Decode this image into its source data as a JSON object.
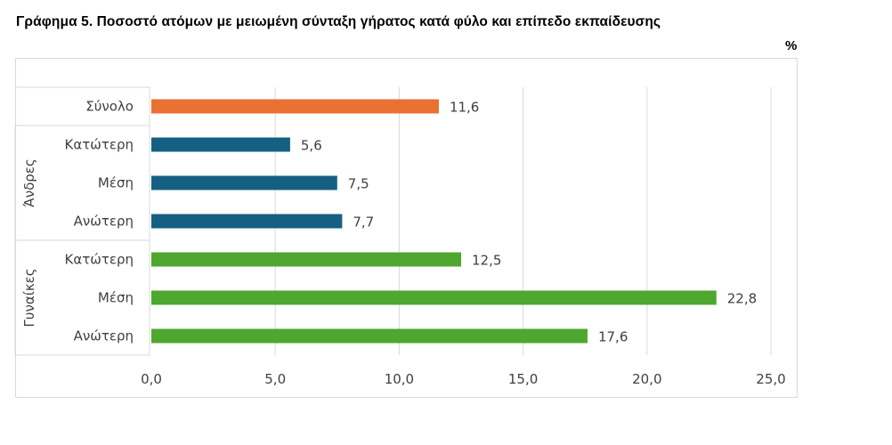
{
  "title": "Γράφημα 5. Ποσοστό ατόμων με μειωμένη σύνταξη γήρατος κατά φύλο και επίπεδο εκπαίδευσης",
  "unit": "%",
  "chart_data": {
    "type": "bar",
    "orientation": "horizontal",
    "title": "Γράφημα 5. Ποσοστό ατόμων με μειωμένη σύνταξη γήρατος κατά φύλο και επίπεδο εκπαίδευσης",
    "ylabel": "%",
    "groups": [
      {
        "name": "",
        "categories": [
          "Σύνολο"
        ]
      },
      {
        "name": "Άνδρες",
        "categories": [
          "Κατώτερη",
          "Μέση",
          "Ανώτερη"
        ]
      },
      {
        "name": "Γυναίκες",
        "categories": [
          "Κατώτερη",
          "Μέση",
          "Ανώτερη"
        ]
      }
    ],
    "categories": [
      "Σύνολο",
      "Κατώτερη",
      "Μέση",
      "Ανώτερη",
      "Κατώτερη",
      "Μέση",
      "Ανώτερη"
    ],
    "values": [
      11.6,
      5.6,
      7.5,
      7.7,
      12.5,
      22.8,
      17.6
    ],
    "value_labels": [
      "11,6",
      "5,6",
      "7,5",
      "7,7",
      "12,5",
      "22,8",
      "17,6"
    ],
    "colors": [
      "#E97132",
      "#156082",
      "#156082",
      "#156082",
      "#4EA72E",
      "#4EA72E",
      "#4EA72E"
    ],
    "xlim": [
      0,
      25
    ],
    "xticks": [
      "0,0",
      "5,0",
      "10,0",
      "15,0",
      "20,0",
      "25,0"
    ],
    "grid": true
  }
}
